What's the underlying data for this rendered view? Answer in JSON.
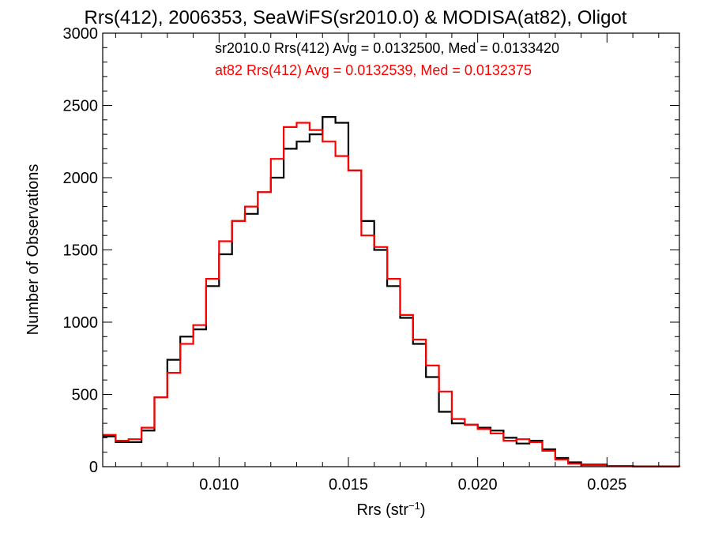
{
  "chart_data": {
    "type": "line",
    "title": "Rrs(412), 2006353, SeaWiFS(sr2010.0) & MODISA(at82), Oligot",
    "xlabel": "Rrs (str",
    "xlabel_sup": "−1",
    "xlabel_close": ")",
    "ylabel": "Number of Observations",
    "xlim": [
      0.0055,
      0.0278
    ],
    "ylim": [
      0,
      3000
    ],
    "xticks": [
      0.01,
      0.015,
      0.02,
      0.025
    ],
    "xtick_labels": [
      "0.010",
      "0.015",
      "0.020",
      "0.025"
    ],
    "yticks": [
      0,
      500,
      1000,
      1500,
      2000,
      2500,
      3000
    ],
    "ytick_labels": [
      "0",
      "500",
      "1000",
      "1500",
      "2000",
      "2500",
      "3000"
    ],
    "grid": false,
    "legend": [
      {
        "text": "sr2010.0 Rrs(412) Avg = 0.0132500, Med = 0.0133420",
        "color": "#000000"
      },
      {
        "text": "at82 Rrs(412) Avg = 0.0132539, Med = 0.0132375",
        "color": "#ff0000"
      }
    ],
    "series": [
      {
        "color": "#000000",
        "points": [
          [
            0.0055,
            210
          ],
          [
            0.006,
            170
          ],
          [
            0.0065,
            170
          ],
          [
            0.007,
            250
          ],
          [
            0.0075,
            480
          ],
          [
            0.008,
            740
          ],
          [
            0.0085,
            900
          ],
          [
            0.009,
            950
          ],
          [
            0.0095,
            1250
          ],
          [
            0.01,
            1470
          ],
          [
            0.0105,
            1700
          ],
          [
            0.011,
            1750
          ],
          [
            0.0115,
            1900
          ],
          [
            0.012,
            2000
          ],
          [
            0.0125,
            2200
          ],
          [
            0.013,
            2250
          ],
          [
            0.0135,
            2300
          ],
          [
            0.014,
            2420
          ],
          [
            0.0145,
            2380
          ],
          [
            0.015,
            2050
          ],
          [
            0.0155,
            1700
          ],
          [
            0.016,
            1500
          ],
          [
            0.0165,
            1250
          ],
          [
            0.017,
            1030
          ],
          [
            0.0175,
            850
          ],
          [
            0.018,
            620
          ],
          [
            0.0185,
            380
          ],
          [
            0.019,
            300
          ],
          [
            0.0195,
            290
          ],
          [
            0.02,
            270
          ],
          [
            0.0205,
            250
          ],
          [
            0.021,
            200
          ],
          [
            0.0215,
            160
          ],
          [
            0.022,
            180
          ],
          [
            0.0225,
            120
          ],
          [
            0.023,
            60
          ],
          [
            0.0235,
            30
          ],
          [
            0.024,
            15
          ],
          [
            0.025,
            5
          ],
          [
            0.026,
            2
          ],
          [
            0.0278,
            0
          ]
        ]
      },
      {
        "color": "#ff0000",
        "points": [
          [
            0.0055,
            220
          ],
          [
            0.006,
            180
          ],
          [
            0.0065,
            190
          ],
          [
            0.007,
            270
          ],
          [
            0.0075,
            480
          ],
          [
            0.008,
            650
          ],
          [
            0.0085,
            850
          ],
          [
            0.009,
            980
          ],
          [
            0.0095,
            1300
          ],
          [
            0.01,
            1560
          ],
          [
            0.0105,
            1700
          ],
          [
            0.011,
            1800
          ],
          [
            0.0115,
            1900
          ],
          [
            0.012,
            2130
          ],
          [
            0.0125,
            2350
          ],
          [
            0.013,
            2380
          ],
          [
            0.0135,
            2330
          ],
          [
            0.014,
            2250
          ],
          [
            0.0145,
            2150
          ],
          [
            0.015,
            2050
          ],
          [
            0.0155,
            1600
          ],
          [
            0.016,
            1520
          ],
          [
            0.0165,
            1300
          ],
          [
            0.017,
            1050
          ],
          [
            0.0175,
            880
          ],
          [
            0.018,
            700
          ],
          [
            0.0185,
            520
          ],
          [
            0.019,
            330
          ],
          [
            0.0195,
            290
          ],
          [
            0.02,
            260
          ],
          [
            0.0205,
            230
          ],
          [
            0.021,
            180
          ],
          [
            0.0215,
            190
          ],
          [
            0.022,
            170
          ],
          [
            0.0225,
            110
          ],
          [
            0.023,
            50
          ],
          [
            0.0235,
            20
          ],
          [
            0.024,
            10
          ],
          [
            0.025,
            4
          ],
          [
            0.026,
            1
          ],
          [
            0.0278,
            0
          ]
        ]
      }
    ]
  }
}
